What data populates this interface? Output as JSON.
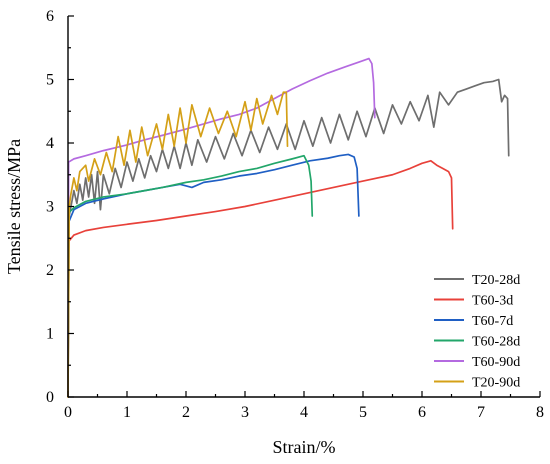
{
  "chart_data": {
    "type": "line",
    "xlabel": "Strain/%",
    "ylabel": "Tensile stress/MPa",
    "xlim": [
      0,
      8
    ],
    "ylim": [
      0,
      6
    ],
    "xticks": [
      "0",
      "1",
      "2",
      "3",
      "4",
      "5",
      "6",
      "7",
      "8"
    ],
    "yticks": [
      "0",
      "1",
      "2",
      "3",
      "4",
      "5",
      "6"
    ],
    "grid": false,
    "legend_position": "bottom-right",
    "series": [
      {
        "name": "T20-28d",
        "color": "#6e6e6e",
        "points": [
          [
            0,
            0
          ],
          [
            0.02,
            2.85
          ],
          [
            0.05,
            3.0
          ],
          [
            0.1,
            3.25
          ],
          [
            0.15,
            3.05
          ],
          [
            0.2,
            3.35
          ],
          [
            0.25,
            3.1
          ],
          [
            0.3,
            3.45
          ],
          [
            0.35,
            3.15
          ],
          [
            0.4,
            3.5
          ],
          [
            0.45,
            3.05
          ],
          [
            0.5,
            3.55
          ],
          [
            0.55,
            2.95
          ],
          [
            0.6,
            3.5
          ],
          [
            0.7,
            3.2
          ],
          [
            0.8,
            3.6
          ],
          [
            0.9,
            3.3
          ],
          [
            1.0,
            3.7
          ],
          [
            1.1,
            3.4
          ],
          [
            1.2,
            3.75
          ],
          [
            1.3,
            3.45
          ],
          [
            1.4,
            3.8
          ],
          [
            1.5,
            3.55
          ],
          [
            1.6,
            3.9
          ],
          [
            1.7,
            3.6
          ],
          [
            1.8,
            3.95
          ],
          [
            1.9,
            3.6
          ],
          [
            2.0,
            4.0
          ],
          [
            2.1,
            3.65
          ],
          [
            2.2,
            4.05
          ],
          [
            2.35,
            3.7
          ],
          [
            2.5,
            4.1
          ],
          [
            2.65,
            3.75
          ],
          [
            2.8,
            4.15
          ],
          [
            2.95,
            3.8
          ],
          [
            3.1,
            4.2
          ],
          [
            3.25,
            3.85
          ],
          [
            3.4,
            4.25
          ],
          [
            3.55,
            3.9
          ],
          [
            3.7,
            4.3
          ],
          [
            3.85,
            3.9
          ],
          [
            4.0,
            4.35
          ],
          [
            4.15,
            3.95
          ],
          [
            4.3,
            4.4
          ],
          [
            4.45,
            4.0
          ],
          [
            4.6,
            4.45
          ],
          [
            4.75,
            4.05
          ],
          [
            4.9,
            4.5
          ],
          [
            5.05,
            4.1
          ],
          [
            5.2,
            4.55
          ],
          [
            5.35,
            4.15
          ],
          [
            5.5,
            4.6
          ],
          [
            5.65,
            4.3
          ],
          [
            5.8,
            4.65
          ],
          [
            5.95,
            4.35
          ],
          [
            6.1,
            4.75
          ],
          [
            6.2,
            4.25
          ],
          [
            6.3,
            4.8
          ],
          [
            6.45,
            4.6
          ],
          [
            6.6,
            4.8
          ],
          [
            6.75,
            4.85
          ],
          [
            6.9,
            4.9
          ],
          [
            7.05,
            4.95
          ],
          [
            7.2,
            4.97
          ],
          [
            7.3,
            5.0
          ],
          [
            7.35,
            4.65
          ],
          [
            7.4,
            4.75
          ],
          [
            7.45,
            4.7
          ],
          [
            7.47,
            3.8
          ]
        ]
      },
      {
        "name": "T60-3d",
        "color": "#e8413a",
        "points": [
          [
            0,
            0
          ],
          [
            0.01,
            2.45
          ],
          [
            0.1,
            2.55
          ],
          [
            0.3,
            2.62
          ],
          [
            0.6,
            2.67
          ],
          [
            1.0,
            2.72
          ],
          [
            1.5,
            2.78
          ],
          [
            2.0,
            2.85
          ],
          [
            2.5,
            2.92
          ],
          [
            3.0,
            3.0
          ],
          [
            3.5,
            3.1
          ],
          [
            4.0,
            3.2
          ],
          [
            4.5,
            3.3
          ],
          [
            5.0,
            3.4
          ],
          [
            5.5,
            3.5
          ],
          [
            5.8,
            3.6
          ],
          [
            6.0,
            3.68
          ],
          [
            6.15,
            3.72
          ],
          [
            6.25,
            3.65
          ],
          [
            6.35,
            3.6
          ],
          [
            6.45,
            3.55
          ],
          [
            6.5,
            3.45
          ],
          [
            6.52,
            2.65
          ]
        ]
      },
      {
        "name": "T60-7d",
        "color": "#1f5fc4",
        "points": [
          [
            0,
            0
          ],
          [
            0.01,
            2.75
          ],
          [
            0.1,
            2.95
          ],
          [
            0.3,
            3.05
          ],
          [
            0.6,
            3.12
          ],
          [
            1.0,
            3.2
          ],
          [
            1.3,
            3.25
          ],
          [
            1.6,
            3.3
          ],
          [
            1.9,
            3.35
          ],
          [
            2.1,
            3.3
          ],
          [
            2.3,
            3.38
          ],
          [
            2.6,
            3.42
          ],
          [
            2.9,
            3.48
          ],
          [
            3.2,
            3.52
          ],
          [
            3.5,
            3.58
          ],
          [
            3.8,
            3.65
          ],
          [
            4.1,
            3.72
          ],
          [
            4.4,
            3.76
          ],
          [
            4.6,
            3.8
          ],
          [
            4.75,
            3.82
          ],
          [
            4.85,
            3.78
          ],
          [
            4.9,
            3.6
          ],
          [
            4.93,
            2.85
          ]
        ]
      },
      {
        "name": "T60-28d",
        "color": "#22a66a",
        "points": [
          [
            0,
            0
          ],
          [
            0.01,
            2.9
          ],
          [
            0.1,
            2.98
          ],
          [
            0.3,
            3.08
          ],
          [
            0.6,
            3.15
          ],
          [
            1.0,
            3.2
          ],
          [
            1.3,
            3.25
          ],
          [
            1.6,
            3.3
          ],
          [
            2.0,
            3.38
          ],
          [
            2.3,
            3.42
          ],
          [
            2.6,
            3.48
          ],
          [
            2.9,
            3.55
          ],
          [
            3.2,
            3.6
          ],
          [
            3.5,
            3.68
          ],
          [
            3.8,
            3.75
          ],
          [
            4.0,
            3.8
          ],
          [
            4.08,
            3.65
          ],
          [
            4.12,
            3.4
          ],
          [
            4.14,
            2.85
          ]
        ]
      },
      {
        "name": "T60-90d",
        "color": "#b46ae0",
        "points": [
          [
            0,
            0
          ],
          [
            0.01,
            3.7
          ],
          [
            0.1,
            3.75
          ],
          [
            0.3,
            3.8
          ],
          [
            0.6,
            3.88
          ],
          [
            1.0,
            3.97
          ],
          [
            1.3,
            4.05
          ],
          [
            1.6,
            4.12
          ],
          [
            2.0,
            4.22
          ],
          [
            2.3,
            4.3
          ],
          [
            2.6,
            4.38
          ],
          [
            2.9,
            4.45
          ],
          [
            3.2,
            4.55
          ],
          [
            3.5,
            4.7
          ],
          [
            3.8,
            4.85
          ],
          [
            4.1,
            4.98
          ],
          [
            4.4,
            5.1
          ],
          [
            4.7,
            5.2
          ],
          [
            4.95,
            5.28
          ],
          [
            5.1,
            5.33
          ],
          [
            5.15,
            5.25
          ],
          [
            5.18,
            4.95
          ],
          [
            5.2,
            4.4
          ]
        ]
      },
      {
        "name": "T20-90d",
        "color": "#d4a017",
        "points": [
          [
            0,
            0
          ],
          [
            0.02,
            3.0
          ],
          [
            0.05,
            3.2
          ],
          [
            0.1,
            3.45
          ],
          [
            0.15,
            3.25
          ],
          [
            0.2,
            3.55
          ],
          [
            0.3,
            3.65
          ],
          [
            0.35,
            3.4
          ],
          [
            0.45,
            3.75
          ],
          [
            0.55,
            3.5
          ],
          [
            0.65,
            3.85
          ],
          [
            0.75,
            3.55
          ],
          [
            0.85,
            4.1
          ],
          [
            0.95,
            3.65
          ],
          [
            1.05,
            4.2
          ],
          [
            1.15,
            3.7
          ],
          [
            1.25,
            4.25
          ],
          [
            1.35,
            3.8
          ],
          [
            1.5,
            4.3
          ],
          [
            1.6,
            3.9
          ],
          [
            1.7,
            4.45
          ],
          [
            1.8,
            3.95
          ],
          [
            1.9,
            4.55
          ],
          [
            2.0,
            4.0
          ],
          [
            2.1,
            4.6
          ],
          [
            2.25,
            4.1
          ],
          [
            2.4,
            4.55
          ],
          [
            2.55,
            4.15
          ],
          [
            2.7,
            4.5
          ],
          [
            2.85,
            4.1
          ],
          [
            3.0,
            4.65
          ],
          [
            3.1,
            4.2
          ],
          [
            3.2,
            4.7
          ],
          [
            3.3,
            4.3
          ],
          [
            3.45,
            4.75
          ],
          [
            3.55,
            4.45
          ],
          [
            3.65,
            4.8
          ],
          [
            3.7,
            4.8
          ],
          [
            3.72,
            3.95
          ]
        ]
      }
    ]
  }
}
